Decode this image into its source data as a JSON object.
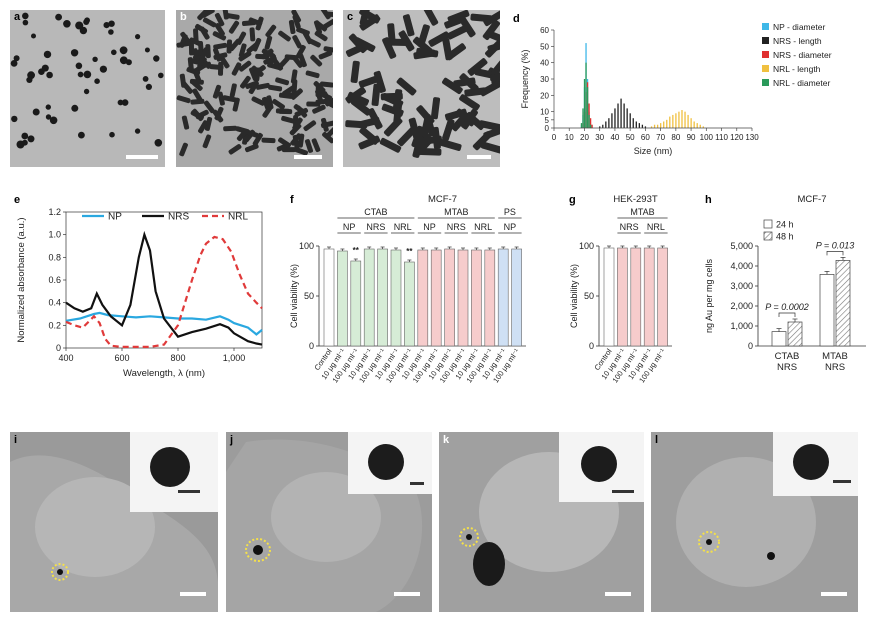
{
  "panel_letters": {
    "a": "a",
    "b": "b",
    "c": "c",
    "d": "d",
    "e": "e",
    "f": "f",
    "g": "g",
    "h": "h",
    "i": "i",
    "j": "j",
    "k": "k",
    "l": "l"
  },
  "chart_data": [
    {
      "id": "d",
      "type": "bar",
      "xlabel": "Size (nm)",
      "ylabel": "Frequency (%)",
      "xlim": [
        0,
        130
      ],
      "ylim": [
        0,
        60
      ],
      "xticks": [
        0,
        10,
        20,
        30,
        40,
        50,
        60,
        70,
        80,
        90,
        100,
        110,
        120,
        130
      ],
      "yticks": [
        0,
        5,
        10,
        20,
        30,
        40,
        50,
        60
      ],
      "ytick_labels": [
        "0",
        "5",
        "10",
        "20",
        "30",
        "40",
        "50",
        "60"
      ],
      "legend_placement": "top-right",
      "series": [
        {
          "name": "NP - diameter",
          "color": "#3fb8e8",
          "x": [
            18,
            19,
            20,
            21,
            22,
            23,
            24
          ],
          "values": [
            2,
            8,
            25,
            52,
            30,
            10,
            2
          ]
        },
        {
          "name": "NRS - length",
          "color": "#222222",
          "x": [
            30,
            32,
            34,
            36,
            38,
            40,
            42,
            44,
            46,
            48,
            50,
            52,
            54,
            56,
            58,
            60
          ],
          "values": [
            1,
            2,
            4,
            6,
            9,
            12,
            15,
            18,
            15,
            12,
            9,
            6,
            4,
            3,
            2,
            1
          ]
        },
        {
          "name": "NRS - diameter",
          "color": "#e03030",
          "x": [
            19,
            20,
            21,
            22,
            23,
            24,
            25
          ],
          "values": [
            3,
            10,
            22,
            28,
            15,
            6,
            2
          ]
        },
        {
          "name": "NRL - length",
          "color": "#f0c040",
          "x": [
            64,
            66,
            68,
            70,
            72,
            74,
            76,
            78,
            80,
            82,
            84,
            86,
            88,
            90,
            92,
            94,
            96,
            98
          ],
          "values": [
            1,
            2,
            2,
            3,
            4,
            5,
            7,
            8,
            9,
            10,
            11,
            10,
            8,
            6,
            4,
            3,
            2,
            1
          ]
        },
        {
          "name": "NRL - diameter",
          "color": "#2a9a5a",
          "x": [
            18,
            19,
            20,
            21,
            22,
            23,
            24
          ],
          "values": [
            3,
            12,
            30,
            40,
            25,
            8,
            2
          ]
        }
      ]
    },
    {
      "id": "e",
      "type": "line",
      "xlabel": "Wavelength, λ (nm)",
      "ylabel": "Normalized absorbance (a.u.)",
      "xlim": [
        400,
        1100
      ],
      "ylim": [
        0,
        1.2
      ],
      "xtick_labels": [
        "400",
        "600",
        "800",
        "1,000"
      ],
      "yticks": [
        0,
        0.2,
        0.4,
        0.6,
        0.8,
        1.0,
        1.2
      ],
      "ytick_labels": [
        "0",
        "0.2",
        "0.4",
        "0.6",
        "0.8",
        "1.0",
        "1.2"
      ],
      "legend_placement": "top",
      "series": [
        {
          "name": "NP",
          "color": "#2aa8e0",
          "dash": "",
          "x": [
            400,
            450,
            500,
            520,
            550,
            600,
            650,
            700,
            750,
            800,
            850,
            900,
            950,
            980,
            1000,
            1050,
            1080,
            1100
          ],
          "values": [
            0.24,
            0.26,
            0.3,
            0.31,
            0.29,
            0.28,
            0.27,
            0.28,
            0.27,
            0.26,
            0.26,
            0.25,
            0.28,
            0.25,
            0.22,
            0.18,
            0.12,
            0.16
          ]
        },
        {
          "name": "NRS",
          "color": "#111111",
          "dash": "",
          "x": [
            400,
            430,
            460,
            490,
            510,
            530,
            560,
            600,
            630,
            660,
            680,
            700,
            720,
            750,
            800,
            850,
            900,
            950,
            980,
            1000,
            1050,
            1080,
            1100
          ],
          "values": [
            0.4,
            0.35,
            0.32,
            0.35,
            0.48,
            0.38,
            0.28,
            0.2,
            0.38,
            0.8,
            1.0,
            0.86,
            0.5,
            0.26,
            0.1,
            0.14,
            0.17,
            0.21,
            0.18,
            0.13,
            0.06,
            0.04,
            0.03
          ]
        },
        {
          "name": "NRL",
          "color": "#e03a3a",
          "dash": "6,4",
          "x": [
            400,
            430,
            460,
            500,
            520,
            540,
            560,
            600,
            650,
            700,
            750,
            800,
            850,
            880,
            900,
            930,
            960,
            990,
            1020,
            1050,
            1080,
            1100
          ],
          "values": [
            0.23,
            0.2,
            0.18,
            0.28,
            0.22,
            0.08,
            0.02,
            0.01,
            0.01,
            0.01,
            0.03,
            0.2,
            0.6,
            0.82,
            0.92,
            0.98,
            0.96,
            0.85,
            0.65,
            0.48,
            0.4,
            0.35
          ]
        }
      ]
    },
    {
      "id": "f",
      "type": "bar",
      "title": "MCF-7",
      "ylabel": "Cell viability (%)",
      "ylim": [
        0,
        100
      ],
      "yticks": [
        0,
        50,
        100
      ],
      "ytick_labels": [
        "0",
        "50",
        "100"
      ],
      "group_labels": [
        "CTAB",
        "MTAB",
        "PS"
      ],
      "subgroup_labels": [
        "NP",
        "NRS",
        "NRL",
        "NP",
        "NRS",
        "NRL",
        "NP"
      ],
      "categories": [
        "Control",
        "10 μg ml⁻¹",
        "100 μg ml⁻¹",
        "10 μg ml⁻¹",
        "100 μg ml⁻¹",
        "10 μg ml⁻¹",
        "100 μg ml⁻¹",
        "10 μg ml⁻¹",
        "100 μg ml⁻¹",
        "10 μg ml⁻¹",
        "100 μg ml⁻¹",
        "10 μg ml⁻¹",
        "100 μg ml⁻¹",
        "10 μg ml⁻¹",
        "100 μg ml⁻¹"
      ],
      "values": [
        97,
        95,
        85,
        97,
        97,
        96,
        84,
        96,
        96,
        97,
        96,
        96,
        96,
        97,
        97
      ],
      "colors": [
        "#ffffff",
        "#d6ecd6",
        "#d6ecd6",
        "#d6ecd6",
        "#d6ecd6",
        "#d6ecd6",
        "#d6ecd6",
        "#f6cccc",
        "#f6cccc",
        "#f6cccc",
        "#f6cccc",
        "#f6cccc",
        "#f6cccc",
        "#cfe0f4",
        "#cfe0f4"
      ],
      "significance": [
        "",
        "",
        "**",
        "",
        "",
        "",
        "**",
        "",
        "",
        "",
        "",
        "",
        "",
        "",
        ""
      ]
    },
    {
      "id": "g",
      "type": "bar",
      "title": "HEK-293T",
      "ylabel": "Cell viability (%)",
      "ylim": [
        0,
        100
      ],
      "yticks": [
        0,
        50,
        100
      ],
      "ytick_labels": [
        "0",
        "50",
        "100"
      ],
      "group_labels": [
        "MTAB"
      ],
      "subgroup_labels": [
        "NRS",
        "NRL"
      ],
      "categories": [
        "Control",
        "10 μg ml⁻¹",
        "100 μg ml⁻¹",
        "10 μg ml⁻¹",
        "100 μg ml⁻¹"
      ],
      "values": [
        98,
        98,
        98,
        98,
        98
      ],
      "colors": [
        "#ffffff",
        "#f6cccc",
        "#f6cccc",
        "#f6cccc",
        "#f6cccc"
      ]
    },
    {
      "id": "h",
      "type": "bar",
      "title": "MCF-7",
      "ylabel": "ng Au per mg cells",
      "ylim": [
        0,
        5000
      ],
      "yticks": [
        0,
        1000,
        2000,
        3000,
        4000,
        5000
      ],
      "ytick_labels": [
        "0",
        "1,000",
        "2,000",
        "3,000",
        "4,000",
        "5,000"
      ],
      "categories": [
        "CTAB NRS",
        "MTAB NRS"
      ],
      "category_lines": [
        [
          "CTAB",
          "NRS"
        ],
        [
          "MTAB",
          "NRS"
        ]
      ],
      "legend_placement": "top-left",
      "series": [
        {
          "name": "24 h",
          "values": [
            720,
            3580
          ],
          "pattern": "plain"
        },
        {
          "name": "48 h",
          "values": [
            1200,
            4280
          ],
          "pattern": "hatch"
        }
      ],
      "annotations": [
        "P = 0.0002",
        "P = 0.013"
      ]
    }
  ],
  "scale_bars": [
    "",
    "",
    "",
    "",
    "",
    "",
    "",
    "",
    "",
    "",
    "",
    "",
    "",
    "",
    "",
    ""
  ]
}
